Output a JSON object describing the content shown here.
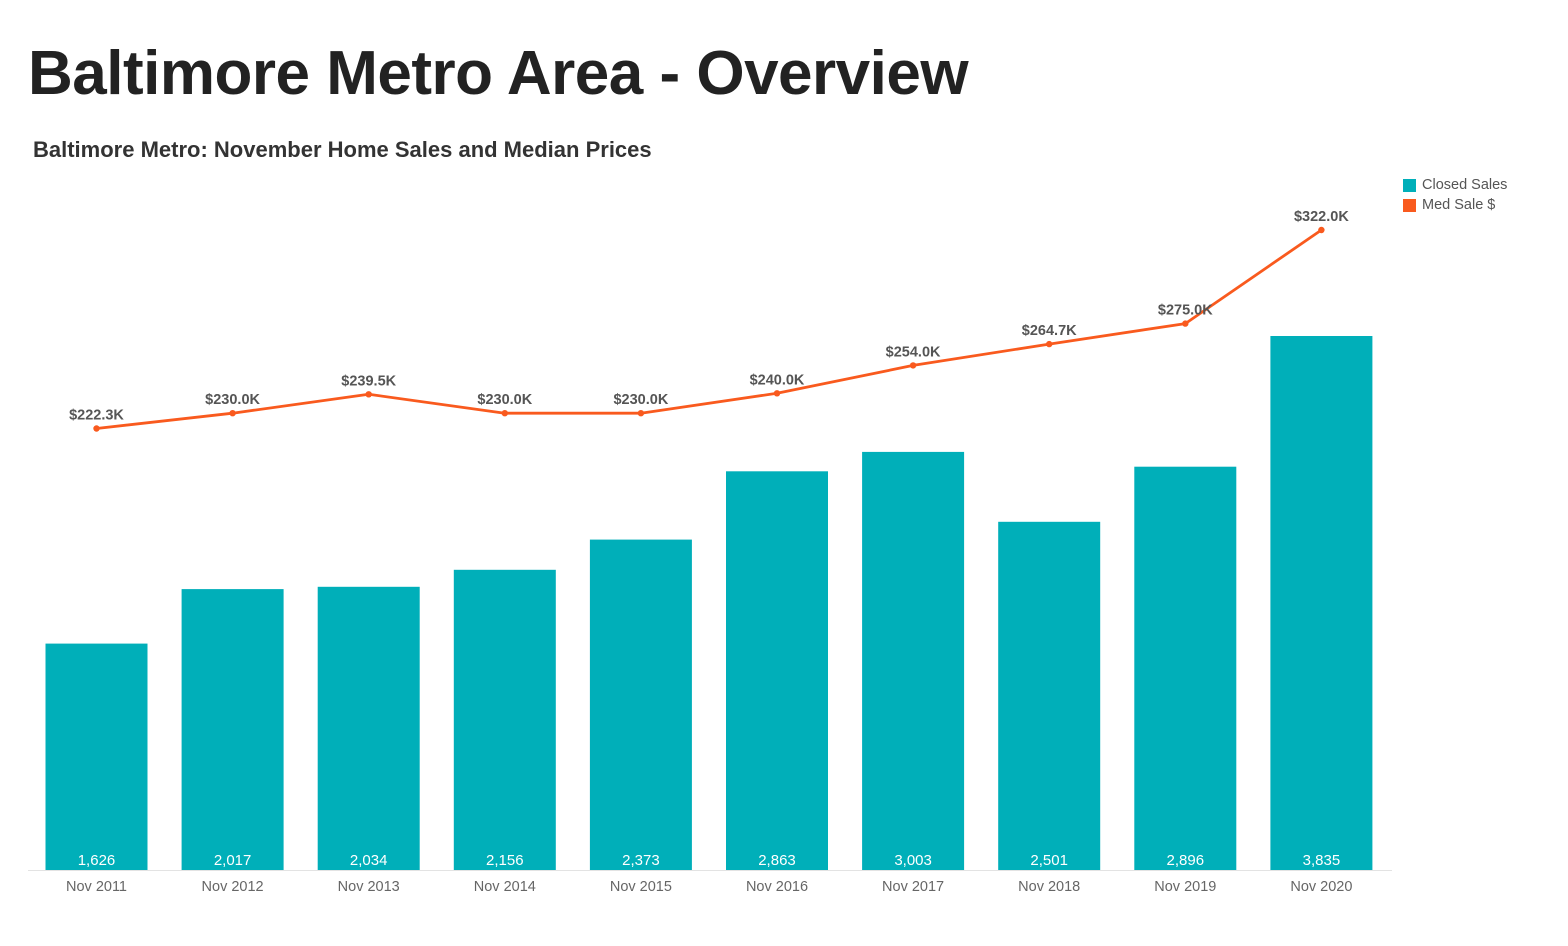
{
  "page": {
    "title": "Baltimore Metro Area - Overview"
  },
  "chart_data": {
    "type": "bar",
    "title": "Baltimore Metro: November Home Sales and Median Prices",
    "xlabel": "",
    "ylabel": "",
    "categories": [
      "Nov 2011",
      "Nov 2012",
      "Nov 2013",
      "Nov 2014",
      "Nov 2015",
      "Nov 2016",
      "Nov 2017",
      "Nov 2018",
      "Nov 2019",
      "Nov 2020"
    ],
    "series": [
      {
        "name": "Closed Sales",
        "type": "bar",
        "color": "#00AFB9",
        "values": [
          1626,
          2017,
          2034,
          2156,
          2373,
          2863,
          3003,
          2501,
          2896,
          3835
        ],
        "labels": [
          "1,626",
          "2,017",
          "2,034",
          "2,156",
          "2,373",
          "2,863",
          "3,003",
          "2,501",
          "2,896",
          "3,835"
        ]
      },
      {
        "name": "Med Sale $",
        "type": "line",
        "color": "#F95A1E",
        "values": [
          222.3,
          230.0,
          239.5,
          230.0,
          230.0,
          240.0,
          254.0,
          264.7,
          275.0,
          322.0
        ],
        "labels": [
          "$222.3K",
          "$230.0K",
          "$239.5K",
          "$230.0K",
          "$230.0K",
          "$240.0K",
          "$254.0K",
          "$264.7K",
          "$275.0K",
          "$322.0K"
        ]
      }
    ],
    "legend": {
      "placement": "top-right",
      "items": [
        {
          "label": "Closed Sales",
          "color": "#00AFB9"
        },
        {
          "label": "Med Sale $",
          "color": "#F95A1E"
        }
      ]
    },
    "grid": false
  }
}
